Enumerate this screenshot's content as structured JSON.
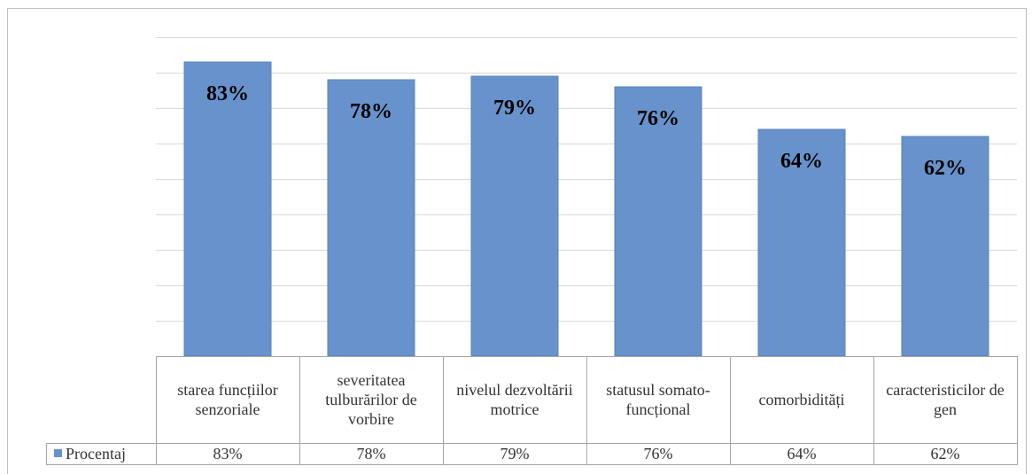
{
  "chart_data": {
    "type": "bar",
    "categories": [
      "starea funcțiilor senzoriale",
      "severitatea tulburărilor de vorbire",
      "nivelul dezvoltării motrice",
      "statusul somato-funcțional",
      "comorbidități",
      "caracteristicilor de gen"
    ],
    "series": [
      {
        "name": "Procentaj",
        "color": "#6792cb",
        "values": [
          83,
          78,
          79,
          76,
          64,
          62
        ],
        "value_labels": [
          "83%",
          "78%",
          "79%",
          "76%",
          "64%",
          "62%"
        ]
      }
    ],
    "ylim": [
      0,
      90
    ],
    "yticks": [
      0,
      10,
      20,
      30,
      40,
      50,
      60,
      70,
      80,
      90
    ],
    "grid": true
  }
}
